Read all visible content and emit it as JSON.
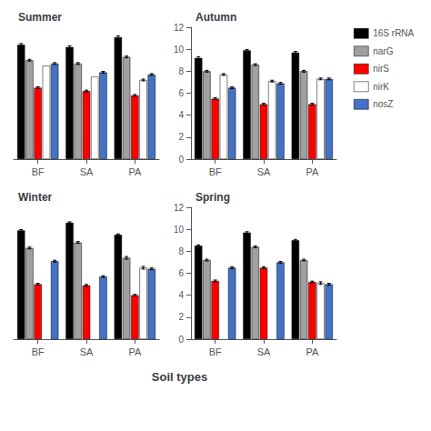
{
  "xlabel": "Soil types",
  "chart_data": [
    {
      "type": "bar",
      "title": "Summer",
      "categories": [
        "BF",
        "SA",
        "PA"
      ],
      "series": [
        {
          "name": "16S rRNA",
          "color": "black",
          "values": [
            10.4,
            10.2,
            11.1
          ],
          "errors": [
            0.12,
            0.12,
            0.12
          ]
        },
        {
          "name": "narG",
          "color": "#a0a0a0",
          "values": [
            9.0,
            8.7,
            9.3
          ],
          "errors": [
            0.08,
            0.08,
            0.08
          ]
        },
        {
          "name": "nirS",
          "color": "red",
          "values": [
            6.5,
            6.2,
            5.8
          ],
          "errors": [
            0.08,
            0.08,
            0.08
          ]
        },
        {
          "name": "nirK",
          "color": "white",
          "values": [
            8.5,
            7.5,
            7.2
          ],
          "errors": [
            null,
            null,
            0.08
          ]
        },
        {
          "name": "nosZ",
          "color": "#4472c4",
          "values": [
            8.7,
            7.9,
            7.7
          ],
          "errors": [
            0.08,
            0.08,
            0.08
          ]
        }
      ],
      "ylim": [
        0,
        12
      ],
      "tick_labels": "x",
      "grid": false
    },
    {
      "type": "bar",
      "title": "Autumn",
      "categories": [
        "BF",
        "SA",
        "PA"
      ],
      "series": [
        {
          "name": "16S rRNA",
          "color": "black",
          "values": [
            9.2,
            9.9,
            9.7
          ],
          "errors": [
            0.12,
            0.08,
            0.1
          ]
        },
        {
          "name": "narG",
          "color": "#a0a0a0",
          "values": [
            8.0,
            8.6,
            8.0
          ],
          "errors": [
            0.08,
            0.08,
            0.08
          ]
        },
        {
          "name": "nirS",
          "color": "red",
          "values": [
            5.5,
            5.0,
            5.0
          ],
          "errors": [
            0.08,
            0.08,
            0.08
          ]
        },
        {
          "name": "nirK",
          "color": "white",
          "values": [
            7.7,
            7.1,
            7.3
          ],
          "errors": [
            0.08,
            0.08,
            0.08
          ]
        },
        {
          "name": "nosZ",
          "color": "#4472c4",
          "values": [
            6.5,
            6.9,
            7.3
          ],
          "errors": [
            0.08,
            0.08,
            0.08
          ]
        }
      ],
      "ylim": [
        0,
        12
      ],
      "yticks": [
        0,
        2,
        4,
        6,
        8,
        10,
        12
      ],
      "grid": false,
      "legend": "upper right"
    },
    {
      "type": "bar",
      "title": "Winter",
      "categories": [
        "BF",
        "SA",
        "PA"
      ],
      "series": [
        {
          "name": "16S rRNA",
          "color": "black",
          "values": [
            9.9,
            10.6,
            9.5
          ],
          "errors": [
            0.08,
            0.08,
            0.08
          ]
        },
        {
          "name": "narG",
          "color": "#a0a0a0",
          "values": [
            8.3,
            8.8,
            7.4
          ],
          "errors": [
            0.08,
            0.08,
            0.12
          ]
        },
        {
          "name": "nirS",
          "color": "red",
          "values": [
            5.0,
            4.9,
            4.0
          ],
          "errors": [
            0.08,
            0.08,
            0.08
          ]
        },
        {
          "name": "nirK",
          "color": "white",
          "values": [
            null,
            null,
            6.5
          ],
          "errors": [
            null,
            null,
            0.12
          ]
        },
        {
          "name": "nosZ",
          "color": "#4472c4",
          "values": [
            7.1,
            5.7,
            6.4
          ],
          "errors": [
            0.08,
            0.08,
            0.08
          ]
        }
      ],
      "ylim": [
        0,
        12
      ],
      "tick_labels": "x",
      "grid": false
    },
    {
      "type": "bar",
      "title": "Spring",
      "categories": [
        "BF",
        "SA",
        "PA"
      ],
      "series": [
        {
          "name": "16S rRNA",
          "color": "black",
          "values": [
            8.5,
            9.7,
            9.0
          ],
          "errors": [
            0.08,
            0.08,
            0.08
          ]
        },
        {
          "name": "narG",
          "color": "#a0a0a0",
          "values": [
            7.2,
            8.4,
            7.2
          ],
          "errors": [
            0.08,
            0.08,
            0.08
          ]
        },
        {
          "name": "nirS",
          "color": "red",
          "values": [
            5.3,
            6.5,
            5.2
          ],
          "errors": [
            0.08,
            0.08,
            0.08
          ]
        },
        {
          "name": "nirK",
          "color": "white",
          "values": [
            null,
            null,
            5.1
          ],
          "errors": [
            null,
            null,
            0.12
          ]
        },
        {
          "name": "nosZ",
          "color": "#4472c4",
          "values": [
            6.5,
            7.0,
            5.0
          ],
          "errors": [
            0.08,
            0.08,
            0.08
          ]
        }
      ],
      "ylim": [
        0,
        12
      ],
      "yticks": [
        0,
        2,
        4,
        6,
        8,
        10,
        12
      ],
      "grid": false
    }
  ]
}
